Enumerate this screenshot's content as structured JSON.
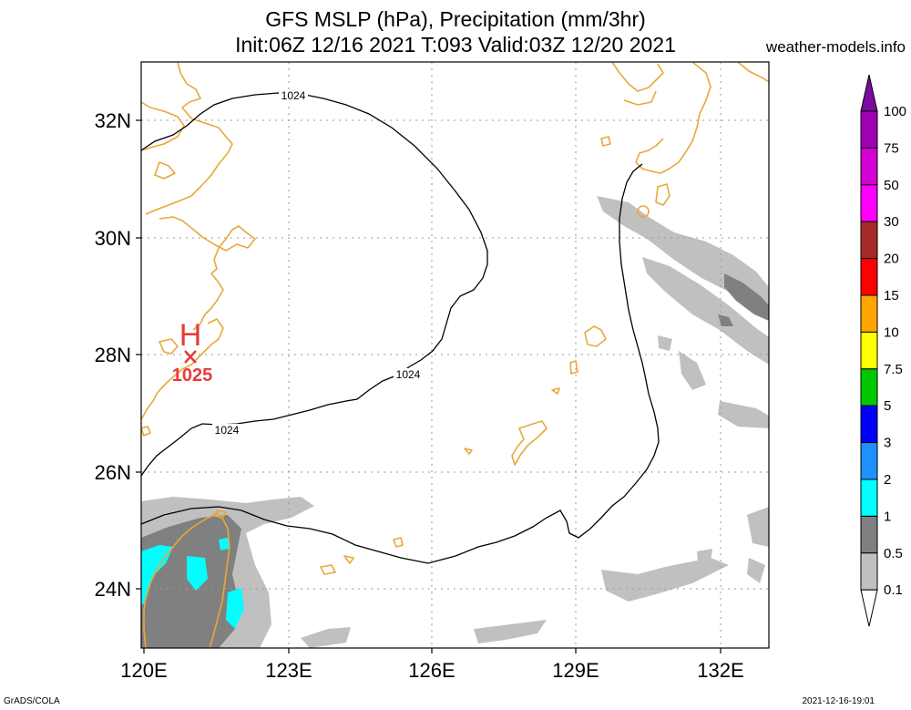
{
  "title_line1": "GFS MSLP (hPa), Precipitation (mm/3hr)",
  "title_line2": "Init:06Z 12/16 2021 T:093 Valid:03Z 12/20 2021",
  "site": "weather-models.info",
  "footer_left": "GrADS/COLA",
  "footer_right": "2021-12-16-19:01",
  "lat_labels": [
    "32N",
    "30N",
    "28N",
    "26N",
    "24N"
  ],
  "lon_labels": [
    "120E",
    "123E",
    "126E",
    "129E",
    "132E"
  ],
  "isobar_label": "1024",
  "high": {
    "letter": "H",
    "value": "1025"
  },
  "colorbar": {
    "labels": [
      "100",
      "75",
      "50",
      "30",
      "20",
      "15",
      "10",
      "7.5",
      "5",
      "3",
      "2",
      "1",
      "0.5",
      "0.1"
    ],
    "colors": [
      "#7a0aa0",
      "#a000b4",
      "#d200d2",
      "#ff00ff",
      "#a52a2a",
      "#ff0000",
      "#ffa500",
      "#ffff00",
      "#00c800",
      "#0000ff",
      "#1e90ff",
      "#00ffff",
      "#808080",
      "#c0c0c0"
    ]
  },
  "colors": {
    "coast": "#e8a838",
    "isobar": "#000000",
    "precip_light": "#c0c0c0",
    "precip_mid": "#808080",
    "precip_cyan": "#00ffff",
    "high_marker": "#e83a3a"
  }
}
